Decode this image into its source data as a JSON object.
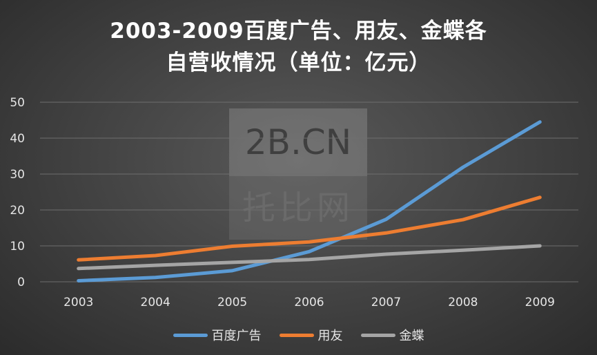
{
  "title_line1": "2003-2009百度广告、用友、金蝶各",
  "title_line2": "自营收情况（单位：亿元）",
  "watermark": {
    "top": "2B.CN",
    "bottom": "托比网"
  },
  "chart_data": {
    "type": "line",
    "title": "2003-2009百度广告、用友、金蝶各自营收情况（单位：亿元）",
    "categories": [
      "2003",
      "2004",
      "2005",
      "2006",
      "2007",
      "2008",
      "2009"
    ],
    "y_ticks": [
      0,
      10,
      20,
      30,
      40,
      50
    ],
    "ylim": [
      0,
      50
    ],
    "grid": "horizontal",
    "legend_position": "bottom",
    "series": [
      {
        "name": "百度广告",
        "color": "#5b9bd5",
        "values": [
          0.3,
          1.2,
          3.1,
          8.4,
          17.4,
          31.9,
          44.5
        ]
      },
      {
        "name": "用友",
        "color": "#ed7d31",
        "values": [
          6.1,
          7.3,
          9.9,
          11.1,
          13.6,
          17.3,
          23.5
        ]
      },
      {
        "name": "金蝶",
        "color": "#a5a5a5",
        "values": [
          3.7,
          4.6,
          5.4,
          6.2,
          7.7,
          8.8,
          10.0
        ]
      }
    ]
  }
}
